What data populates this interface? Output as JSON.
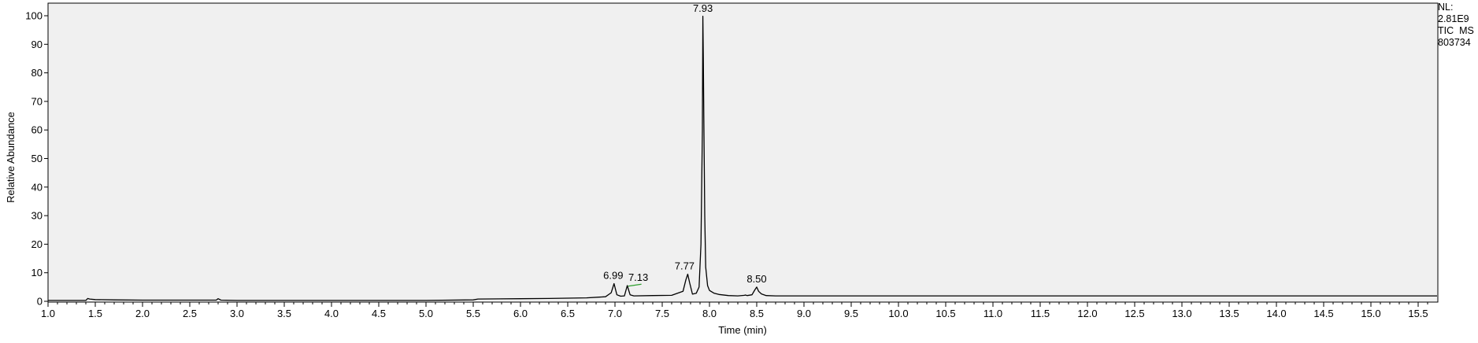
{
  "chart_data": {
    "type": "line",
    "title": "",
    "xlabel": "Time (min)",
    "ylabel": "Relative Abundance",
    "xlim": [
      1.0,
      15.7
    ],
    "ylim": [
      0,
      100
    ],
    "x_ticks": [
      "1.0",
      "1.5",
      "2.0",
      "2.5",
      "3.0",
      "3.5",
      "4.0",
      "4.5",
      "5.0",
      "5.5",
      "6.0",
      "6.5",
      "7.0",
      "7.5",
      "8.0",
      "8.5",
      "9.0",
      "9.5",
      "10.0",
      "10.5",
      "11.0",
      "11.5",
      "12.0",
      "12.5",
      "13.0",
      "13.5",
      "14.0",
      "14.5",
      "15.0",
      "15.5"
    ],
    "y_ticks": [
      "0",
      "10",
      "20",
      "30",
      "40",
      "50",
      "60",
      "70",
      "80",
      "90",
      "100"
    ],
    "grid": false,
    "legend": "none",
    "colors": {
      "trace": "#000000",
      "plot_background": "#f0f0f0",
      "integration_mark": "#2e9e2e"
    },
    "series": [
      {
        "x": [
          1.0,
          1.4,
          1.42,
          1.44,
          1.5,
          1.7,
          2.0,
          2.5,
          2.78,
          2.8,
          2.83,
          3.0,
          4.0,
          5.0,
          5.5,
          5.55,
          6.0,
          6.3,
          6.5,
          6.7,
          6.9,
          6.96,
          6.99,
          7.02,
          7.06,
          7.1,
          7.13,
          7.16,
          7.2,
          7.4,
          7.6,
          7.72,
          7.75,
          7.77,
          7.79,
          7.82,
          7.86,
          7.89,
          7.91,
          7.925,
          7.93,
          7.935,
          7.94,
          7.95,
          7.96,
          7.98,
          8.0,
          8.05,
          8.1,
          8.2,
          8.3,
          8.37,
          8.38,
          8.4,
          8.45,
          8.48,
          8.5,
          8.52,
          8.55,
          8.6,
          8.7,
          9.0,
          10.0,
          12.0,
          14.0,
          15.7
        ],
        "y": [
          0.3,
          0.3,
          1.0,
          0.8,
          0.6,
          0.5,
          0.4,
          0.4,
          0.4,
          0.9,
          0.4,
          0.3,
          0.3,
          0.3,
          0.5,
          0.8,
          0.9,
          1.0,
          1.1,
          1.2,
          1.6,
          3.0,
          6.2,
          2.3,
          1.8,
          1.9,
          5.5,
          2.3,
          1.9,
          2.0,
          2.1,
          3.5,
          7.5,
          9.5,
          6.5,
          2.5,
          2.8,
          5.0,
          20.0,
          60.0,
          99.8,
          85.0,
          65.0,
          30.0,
          12.0,
          5.5,
          3.8,
          2.8,
          2.4,
          2.0,
          1.9,
          2.1,
          2.2,
          2.0,
          2.3,
          4.0,
          5.0,
          3.5,
          2.6,
          2.0,
          1.9,
          1.9,
          1.9,
          1.9,
          1.9,
          1.9
        ]
      }
    ],
    "peak_labels": [
      {
        "x": 6.99,
        "y": 6.2,
        "label": "6.99"
      },
      {
        "x": 7.13,
        "y": 5.5,
        "label": "7.13"
      },
      {
        "x": 7.77,
        "y": 9.5,
        "label": "7.77"
      },
      {
        "x": 7.93,
        "y": 99.8,
        "label": "7.93"
      },
      {
        "x": 8.5,
        "y": 5.0,
        "label": "8.50"
      }
    ],
    "annotation": {
      "nl_label": "NL:",
      "nl_value": "2.81E9",
      "trace_type": "TIC  MS",
      "sample_id": "803734"
    }
  }
}
